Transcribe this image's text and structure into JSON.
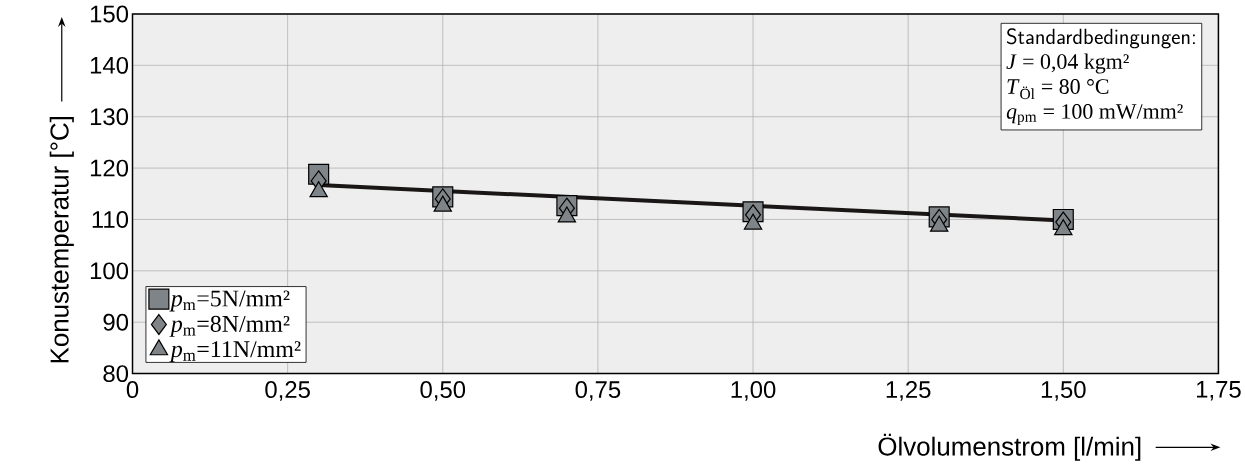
{
  "chart_data": {
    "type": "scatter",
    "xlabel": "Ölvolumenstrom [l/min]",
    "ylabel": "Konustemperatur [°C]",
    "x": [
      0.3,
      0.5,
      0.7,
      1.0,
      1.3,
      1.5
    ],
    "series": [
      {
        "name": "*p*$_{m}$=5N/mm²",
        "color": "#7f8488",
        "marker": "square",
        "values": [
          118.8,
          114.4,
          112.7,
          111.5,
          110.5,
          110
        ]
      },
      {
        "name": "*p*$_{m}$=8N/mm²",
        "color": "#7f8488",
        "marker": "diamond",
        "values": [
          117.5,
          114,
          112.2,
          110.9,
          110,
          109.5
        ]
      },
      {
        "name": "*p*$_{m}$=11N/mm²",
        "color": "#7f8488",
        "marker": "triangle",
        "values": [
          115.4,
          112.6,
          110.5,
          109.1,
          108.7,
          108
        ]
      },
      {
        "type": "line",
        "color": "#1a1616",
        "marker": "none",
        "x": [
          0.3,
          1.5
        ],
        "values": [
          116.7,
          109.8
        ]
      }
    ],
    "xlim": [
      0,
      1.75
    ],
    "xticks": [
      0,
      {
        "value": 0.25,
        "label": "0,25"
      },
      {
        "value": 0.5,
        "label": "0,50"
      },
      {
        "value": 0.75,
        "label": "0,75"
      },
      {
        "value": 1.0,
        "label": "1,00"
      },
      {
        "value": 1.25,
        "label": "1,25"
      },
      {
        "value": 1.5,
        "label": "1,50"
      },
      {
        "value": 1.75,
        "label": "1,75"
      }
    ],
    "ylim": [
      80,
      150
    ],
    "yticks": [
      80,
      90,
      100,
      110,
      120,
      130,
      140,
      150
    ],
    "grid": true,
    "legend": "bottom left",
    "annotations": [
      "Standardbedingungen:",
      "*J* = 0,04 kgm²",
      "*T*$_{Öl}$ = 80 °C",
      "*q*$_{pm}$ = 100 mW/mm²"
    ]
  }
}
